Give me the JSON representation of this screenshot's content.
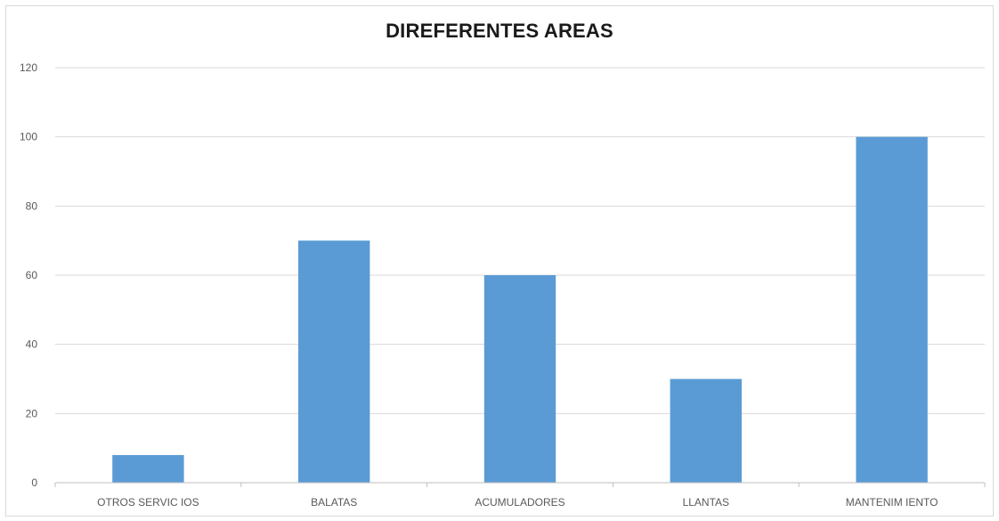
{
  "chart_data": {
    "type": "bar",
    "title": "DIREFERENTES AREAS",
    "xlabel": "",
    "ylabel": "",
    "categories": [
      "OTROS SERVIC IOS",
      "BALATAS",
      "ACUMULADORES",
      "LLANTAS",
      "MANTENIM IENTO"
    ],
    "values": [
      8,
      70,
      60,
      30,
      100
    ],
    "ylim": [
      0,
      120
    ],
    "yticks": [
      0,
      20,
      40,
      60,
      80,
      100,
      120
    ],
    "grid": true,
    "legend": "none",
    "colors": {
      "bar": "#5b9bd5",
      "grid": "#d9d9d9",
      "axis": "#bfbfbf"
    }
  }
}
